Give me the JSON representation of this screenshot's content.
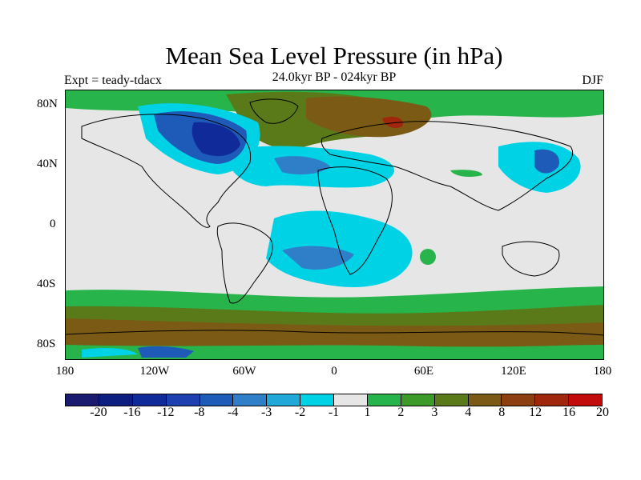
{
  "title": "Mean Sea Level Pressure (in hPa)",
  "subtitle_left": "Expt = teady-tdacx",
  "subtitle_center": "24.0kyr BP - 024kyr BP",
  "subtitle_right": "DJF",
  "lat_labels": [
    "80N",
    "40N",
    "0",
    "40S",
    "80S"
  ],
  "lon_labels": [
    "180",
    "120W",
    "60W",
    "0",
    "60E",
    "120E",
    "180"
  ],
  "colorbar": {
    "colors": [
      "#1a1a6e",
      "#0d1e80",
      "#102a9a",
      "#1d40b0",
      "#1e5ab8",
      "#2e7fc8",
      "#1fa8d8",
      "#00d2e6",
      "#e6e6e6",
      "#27b44a",
      "#3c9a28",
      "#5a7a1a",
      "#7a5a14",
      "#8c3f10",
      "#a0260c",
      "#c20c0c"
    ],
    "labels": [
      "-20",
      "-16",
      "-12",
      "-8",
      "-4",
      "-3",
      "-2",
      "-1",
      "1",
      "2",
      "3",
      "4",
      "8",
      "12",
      "16",
      "20"
    ]
  },
  "map": {
    "background_color": "#e6e6e6",
    "lat_range": [
      -90,
      90
    ],
    "lon_range": [
      -180,
      180
    ]
  }
}
